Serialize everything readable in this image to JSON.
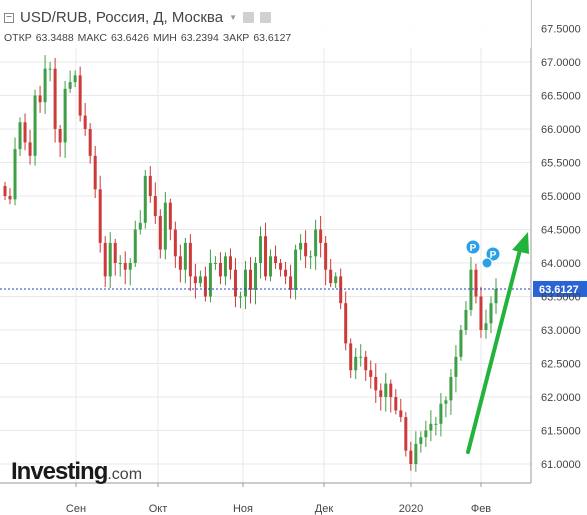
{
  "header": {
    "title": "USD/RUB, Россия, Д, Москва",
    "open_label": "ОТКР",
    "open_value": "63.3488",
    "high_label": "МАКС",
    "high_value": "63.6426",
    "low_label": "МИН",
    "low_value": "63.2394",
    "close_label": "ЗАКР",
    "close_value": "63.6127"
  },
  "brand": {
    "name": "Investing",
    "suffix": ".com"
  },
  "colors": {
    "up": "#3f9e46",
    "down": "#cc3a3a",
    "price_line": "#1f3fbf",
    "price_label": "#2a63d4",
    "arrow": "#22b43a",
    "marker": "#2aa0e6",
    "grid": "#e9e9e9"
  },
  "chart_data": {
    "type": "candlestick",
    "y_ticks": [
      "61.0000",
      "61.5000",
      "62.0000",
      "62.5000",
      "63.0000",
      "63.5000",
      "64.0000",
      "64.5000",
      "65.0000",
      "65.5000",
      "66.0000",
      "66.5000",
      "67.0000",
      "67.5000"
    ],
    "x_ticks": [
      "Сен",
      "Окт",
      "Ноя",
      "Дек",
      "2020",
      "Фев"
    ],
    "ylim": [
      60.75,
      67.75
    ],
    "grid": true,
    "last_price": 63.6127,
    "last_price_label": "63.6127",
    "event_markers": [
      "P",
      "P"
    ],
    "close": [
      65.0,
      64.95,
      65.7,
      66.1,
      65.8,
      65.6,
      66.5,
      66.4,
      66.9,
      66.9,
      66.0,
      65.8,
      66.6,
      66.7,
      66.8,
      66.2,
      66.0,
      65.6,
      65.1,
      64.3,
      63.8,
      64.3,
      64.0,
      64.0,
      63.9,
      64.0,
      64.5,
      64.6,
      65.3,
      65.0,
      64.7,
      64.2,
      64.9,
      64.5,
      64.1,
      63.9,
      64.3,
      63.8,
      63.7,
      63.8,
      63.5,
      64.0,
      64.0,
      63.8,
      64.1,
      63.9,
      63.5,
      63.5,
      63.9,
      63.6,
      64.0,
      64.4,
      63.8,
      64.1,
      64.0,
      63.9,
      63.8,
      63.6,
      64.2,
      64.3,
      64.1,
      64.1,
      64.5,
      64.3,
      63.9,
      63.7,
      63.8,
      63.4,
      62.8,
      62.4,
      62.6,
      62.6,
      62.4,
      62.3,
      62.1,
      62.0,
      62.2,
      62.0,
      61.8,
      61.7,
      61.2,
      61.0,
      61.3,
      61.4,
      61.5,
      61.6,
      61.6,
      61.9,
      61.95,
      62.3,
      62.6,
      63.0,
      63.3,
      63.9,
      63.5,
      63.0,
      63.1,
      63.4,
      63.6127
    ]
  }
}
